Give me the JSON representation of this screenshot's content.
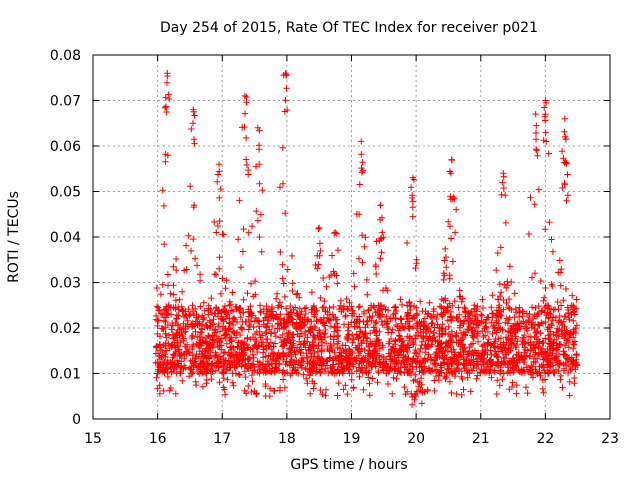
{
  "chart_data": {
    "type": "scatter",
    "title": "Day 254 of 2015, Rate Of TEC Index for receiver p021",
    "xlabel": "GPS time / hours",
    "ylabel": "ROTI / TECUs",
    "xlim": [
      15,
      23
    ],
    "ylim": [
      0,
      0.08
    ],
    "grid": true,
    "marker": "+",
    "color": "#ff0000",
    "xticks": [
      15,
      16,
      17,
      18,
      19,
      20,
      21,
      22,
      23
    ],
    "xtick_labels": [
      "15",
      "16",
      "17",
      "18",
      "19",
      "20",
      "21",
      "22",
      "23"
    ],
    "yticks": [
      0,
      0.01,
      0.02,
      0.03,
      0.04,
      0.05,
      0.06,
      0.07,
      0.08
    ],
    "ytick_labels": [
      "0",
      "0.01",
      "0.02",
      "0.03",
      "0.04",
      "0.05",
      "0.06",
      "0.07",
      "0.08"
    ],
    "series": [
      {
        "name": "ROTI",
        "x_range": [
          15.97,
          22.5
        ],
        "dense_band": [
          0.005,
          0.025
        ],
        "peaks": [
          {
            "x": 16.15,
            "y": 0.076
          },
          {
            "x": 16.55,
            "y": 0.068
          },
          {
            "x": 16.95,
            "y": 0.056
          },
          {
            "x": 17.35,
            "y": 0.071
          },
          {
            "x": 17.55,
            "y": 0.064
          },
          {
            "x": 17.98,
            "y": 0.076
          },
          {
            "x": 18.5,
            "y": 0.042
          },
          {
            "x": 18.75,
            "y": 0.041
          },
          {
            "x": 19.15,
            "y": 0.061
          },
          {
            "x": 19.45,
            "y": 0.047
          },
          {
            "x": 19.95,
            "y": 0.053
          },
          {
            "x": 20.55,
            "y": 0.057
          },
          {
            "x": 21.35,
            "y": 0.054
          },
          {
            "x": 21.85,
            "y": 0.067
          },
          {
            "x": 22.0,
            "y": 0.07
          },
          {
            "x": 22.3,
            "y": 0.066
          }
        ],
        "point_count": 3000
      }
    ]
  }
}
